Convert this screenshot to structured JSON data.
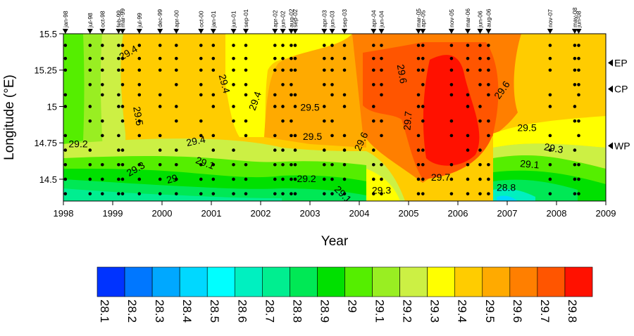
{
  "chart_data": {
    "type": "heatmap",
    "title": "",
    "xlabel": "Year",
    "ylabel": "Longitude (°E)",
    "xlim": [
      1998,
      2009
    ],
    "ylim": [
      14.35,
      15.5
    ],
    "x_ticks": [
      "1998",
      "1999",
      "2000",
      "2001",
      "2002",
      "2003",
      "2004",
      "2005",
      "2006",
      "2007",
      "2008",
      "2009"
    ],
    "y_ticks": [
      "14.5",
      "14.75",
      "15",
      "15.25",
      "15.5"
    ],
    "colorbar": {
      "levels": [
        "28.1",
        "28.2",
        "28.3",
        "28.4",
        "28.5",
        "28.6",
        "28.7",
        "28.8",
        "28.9",
        "29",
        "29.1",
        "29.2",
        "29.3",
        "29.4",
        "29.5",
        "29.6",
        "29.7",
        "29.8"
      ],
      "colors": [
        "#0033ff",
        "#0077ff",
        "#00a8ff",
        "#00d8ff",
        "#00ffff",
        "#00f0c0",
        "#00ee90",
        "#00e855",
        "#00e000",
        "#55ee00",
        "#99ee22",
        "#ccf044",
        "#ffff00",
        "#ffcc00",
        "#ffaa00",
        "#ff7f00",
        "#ff5500",
        "#ff1100"
      ]
    },
    "cruises": [
      {
        "label": "jan-98",
        "x": 1998.04
      },
      {
        "label": "jul-98",
        "x": 1998.54
      },
      {
        "label": "oct-98",
        "x": 1998.79
      },
      {
        "label": "feb-99",
        "x": 1999.12
      },
      {
        "label": "mar-99",
        "x": 1999.2
      },
      {
        "label": "jul-99",
        "x": 1999.54
      },
      {
        "label": "dec-99",
        "x": 1999.96
      },
      {
        "label": "apr-00",
        "x": 2000.29
      },
      {
        "label": "oct-00",
        "x": 2000.79
      },
      {
        "label": "jan-01",
        "x": 2001.04
      },
      {
        "label": "jun-01",
        "x": 2001.45
      },
      {
        "label": "sep-01",
        "x": 2001.7
      },
      {
        "label": "apr-02",
        "x": 2002.29
      },
      {
        "label": "jun-02",
        "x": 2002.45
      },
      {
        "label": "aug-02",
        "x": 2002.62
      },
      {
        "label": "sep-02",
        "x": 2002.7
      },
      {
        "label": "apr-03",
        "x": 2003.29
      },
      {
        "label": "jun-03",
        "x": 2003.45
      },
      {
        "label": "sep-03",
        "x": 2003.7
      },
      {
        "label": "apr-04",
        "x": 2004.29
      },
      {
        "label": "jun-04",
        "x": 2004.45
      },
      {
        "label": "mar-05",
        "x": 2005.2
      },
      {
        "label": "apr-05",
        "x": 2005.29
      },
      {
        "label": "nov-05",
        "x": 2005.87
      },
      {
        "label": "mar-06",
        "x": 2006.2
      },
      {
        "label": "jun-06",
        "x": 2006.45
      },
      {
        "label": "aug-06",
        "x": 2006.62
      },
      {
        "label": "nov-07",
        "x": 2007.87
      },
      {
        "label": "may-08",
        "x": 2008.37
      },
      {
        "label": "jun-08",
        "x": 2008.45
      }
    ],
    "regions": [
      {
        "label": "EP",
        "y": 15.3
      },
      {
        "label": "CP",
        "y": 15.12
      },
      {
        "label": "WP",
        "y": 14.73
      }
    ],
    "contour_labels": [
      {
        "text": "29.4",
        "x": 1999.35,
        "y": 15.35,
        "rot": -30
      },
      {
        "text": "29.5",
        "x": 1999.45,
        "y": 14.93,
        "rot": 80
      },
      {
        "text": "29.4",
        "x": 2001.2,
        "y": 15.15,
        "rot": 75
      },
      {
        "text": "29.4",
        "x": 2001.95,
        "y": 15.03,
        "rot": -70
      },
      {
        "text": "29.5",
        "x": 2003.0,
        "y": 14.97,
        "rot": 0
      },
      {
        "text": "29.6",
        "x": 2004.8,
        "y": 15.22,
        "rot": 80
      },
      {
        "text": "29.7",
        "x": 2005.05,
        "y": 14.9,
        "rot": -85
      },
      {
        "text": "29.6",
        "x": 2006.95,
        "y": 15.1,
        "rot": -55
      },
      {
        "text": "29.5",
        "x": 2007.4,
        "y": 14.83,
        "rot": 0
      },
      {
        "text": "29.3",
        "x": 2007.93,
        "y": 14.69,
        "rot": 10
      },
      {
        "text": "29.1",
        "x": 2007.45,
        "y": 14.58,
        "rot": 5
      },
      {
        "text": "28.8",
        "x": 2006.98,
        "y": 14.42,
        "rot": 0
      },
      {
        "text": "29.2",
        "x": 1998.3,
        "y": 14.72,
        "rot": 0
      },
      {
        "text": "29.4",
        "x": 2000.7,
        "y": 14.74,
        "rot": -12
      },
      {
        "text": "29.3",
        "x": 1999.5,
        "y": 14.55,
        "rot": -30
      },
      {
        "text": "29.1",
        "x": 2000.85,
        "y": 14.59,
        "rot": 20
      },
      {
        "text": "29",
        "x": 2000.22,
        "y": 14.48,
        "rot": -15
      },
      {
        "text": "29.5",
        "x": 2003.05,
        "y": 14.77,
        "rot": 0
      },
      {
        "text": "29.2",
        "x": 2002.93,
        "y": 14.48,
        "rot": 0
      },
      {
        "text": "29.1",
        "x": 2003.62,
        "y": 14.38,
        "rot": 45
      },
      {
        "text": "29.6",
        "x": 2004.1,
        "y": 14.75,
        "rot": -65
      },
      {
        "text": "29.3",
        "x": 2004.45,
        "y": 14.4,
        "rot": 0
      },
      {
        "text": "29.7",
        "x": 2005.65,
        "y": 14.49,
        "rot": 0
      }
    ]
  }
}
